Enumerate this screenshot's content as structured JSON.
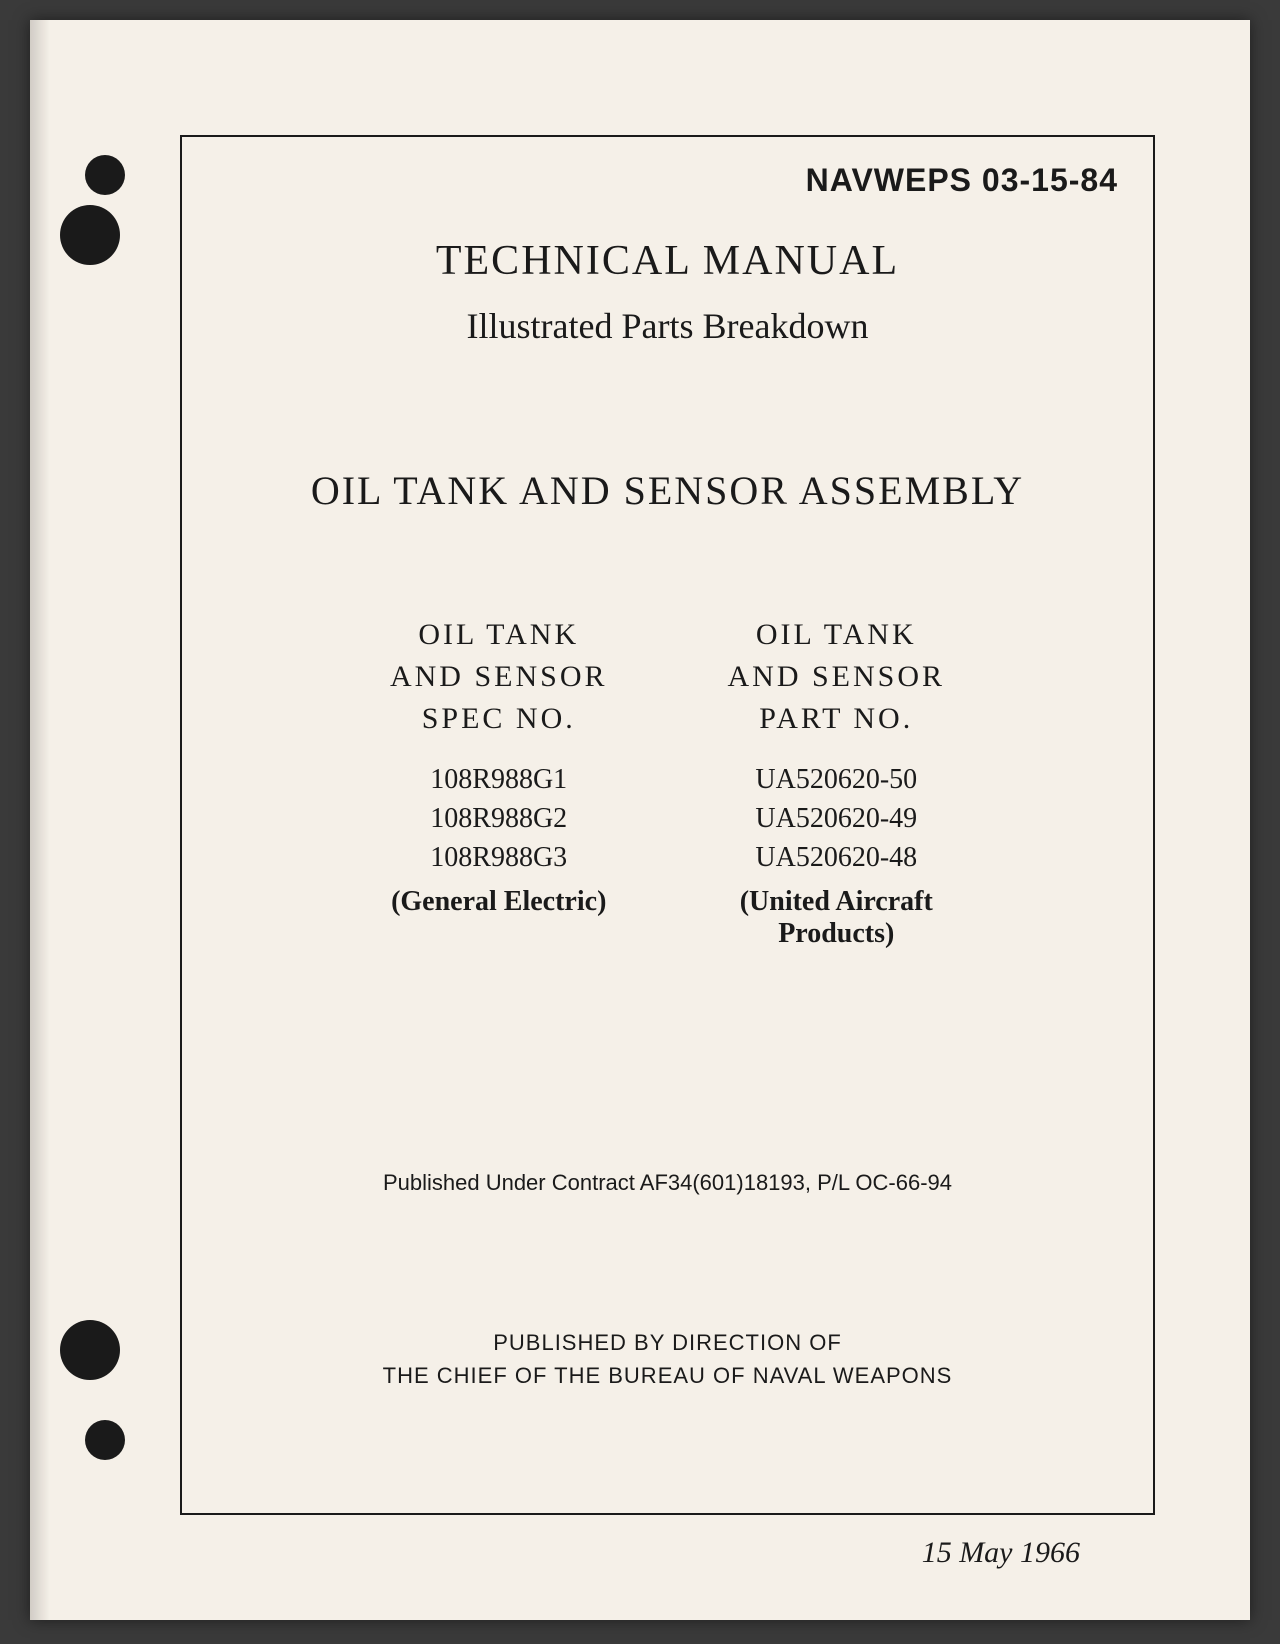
{
  "document": {
    "doc_number": "NAVWEPS 03-15-84",
    "title": "TECHNICAL MANUAL",
    "subtitle": "Illustrated Parts Breakdown",
    "main_title": "OIL TANK AND SENSOR ASSEMBLY",
    "date": "15 May 1966"
  },
  "columns": {
    "left": {
      "header_line1": "OIL TANK",
      "header_line2": "AND SENSOR",
      "header_line3": "SPEC   NO.",
      "items": [
        "108R988G1",
        "108R988G2",
        "108R988G3"
      ],
      "source": "(General Electric)"
    },
    "right": {
      "header_line1": "OIL TANK",
      "header_line2": "AND SENSOR",
      "header_line3": "PART NO.",
      "items": [
        "UA520620-50",
        "UA520620-49",
        "UA520620-48"
      ],
      "source_line1": "(United Aircraft",
      "source_line2": "Products)"
    }
  },
  "contract": "Published Under Contract AF34(601)18193, P/L OC-66-94",
  "publisher": {
    "line1": "PUBLISHED BY DIRECTION OF",
    "line2": "THE CHIEF OF THE BUREAU OF NAVAL WEAPONS"
  },
  "styling": {
    "page_bg": "#f5f0e8",
    "body_bg": "#3a3a3a",
    "text_color": "#1a1a1a",
    "border_color": "#1a1a1a",
    "title_fontsize": 42,
    "subtitle_fontsize": 36,
    "main_title_fontsize": 40,
    "column_header_fontsize": 30,
    "column_item_fontsize": 28,
    "contract_fontsize": 22,
    "publisher_fontsize": 22,
    "date_fontsize": 30,
    "doc_number_fontsize": 32
  }
}
